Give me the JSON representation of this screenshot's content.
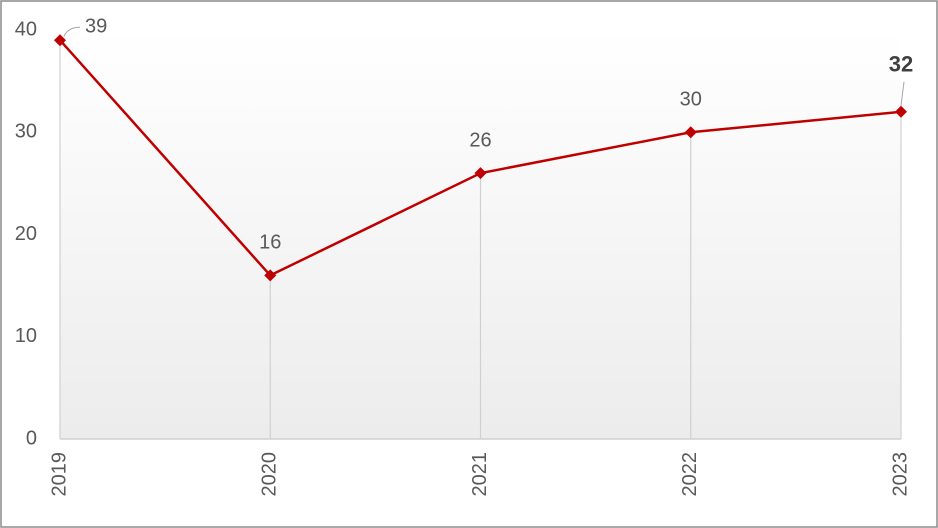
{
  "chart_data": {
    "type": "line",
    "categories": [
      "2019",
      "2020",
      "2021",
      "2022",
      "2023"
    ],
    "series": [
      {
        "color": "#c00000",
        "values": [
          39,
          16,
          26,
          30,
          32
        ]
      }
    ],
    "ylim": [
      0,
      40
    ],
    "yticks": [
      0,
      10,
      20,
      30,
      40
    ]
  }
}
